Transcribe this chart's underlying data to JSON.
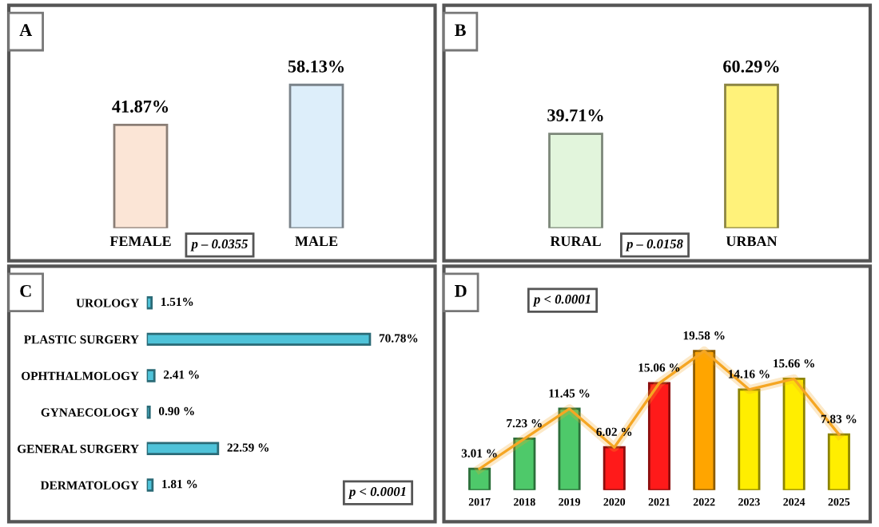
{
  "chart_data": [
    {
      "type": "bar",
      "title": "A",
      "categories": [
        "FEMALE",
        "MALE"
      ],
      "tick_labels": "x",
      "annotations": [
        "p – 0.0355"
      ],
      "series": [
        {
          "values": [
            41.87,
            58.13
          ],
          "colors": [
            "#fbe5d6",
            "#ddeefa"
          ],
          "value_labels": [
            "41.87%",
            "58.13%"
          ]
        }
      ]
    },
    {
      "type": "bar",
      "title": "B",
      "categories": [
        "RURAL",
        "URBAN"
      ],
      "tick_labels": "x",
      "annotations": [
        "p – 0.0158"
      ],
      "series": [
        {
          "values": [
            39.71,
            60.29
          ],
          "colors": [
            "#e2f5dc",
            "#fff27a"
          ],
          "value_labels": [
            "39.71%",
            "60.29%"
          ]
        }
      ]
    },
    {
      "type": "bar",
      "title": "C",
      "orientation": "horizontal",
      "categories": [
        "UROLOGY",
        "PLASTIC SURGERY",
        "OPHTHALMOLOGY",
        "GYNAECOLOGY",
        "GENERAL SURGERY",
        "DERMATOLOGY"
      ],
      "tick_labels": "y",
      "annotations": [
        "p < 0.0001"
      ],
      "series": [
        {
          "values": [
            1.51,
            70.78,
            2.41,
            0.9,
            22.59,
            1.81
          ],
          "colors": [
            "#4fc3d9",
            "#4fc3d9",
            "#4fc3d9",
            "#4fc3d9",
            "#4fc3d9",
            "#4fc3d9"
          ],
          "value_labels": [
            "1.51%",
            "70.78%",
            "2.41 %",
            "0.90 %",
            "22.59 %",
            "1.81 %"
          ]
        }
      ]
    },
    {
      "type": "bar",
      "title": "D",
      "categories": [
        "2017",
        "2018",
        "2019",
        "2020",
        "2021",
        "2022",
        "2023",
        "2024",
        "2025"
      ],
      "tick_labels": "x",
      "annotations": [
        "p < 0.0001"
      ],
      "series": [
        {
          "values": [
            3.01,
            7.23,
            11.45,
            6.02,
            15.06,
            19.58,
            14.16,
            15.66,
            7.83
          ],
          "colors": [
            "#4ec96a",
            "#4ec96a",
            "#4ec96a",
            "#ff1a1a",
            "#ff1a1a",
            "#ffa500",
            "#ffee00",
            "#ffee00",
            "#ffee00"
          ],
          "value_labels": [
            "3.01 %",
            "7.23 %",
            "11.45 %",
            "6.02 %",
            "15.06 %",
            "19.58 %",
            "14.16 %",
            "15.66 %",
            "7.83 %"
          ]
        },
        {
          "type": "line",
          "color": "#f5a623",
          "values": [
            3.01,
            7.23,
            11.45,
            6.02,
            15.06,
            19.58,
            14.16,
            15.66,
            7.83
          ]
        }
      ]
    }
  ]
}
